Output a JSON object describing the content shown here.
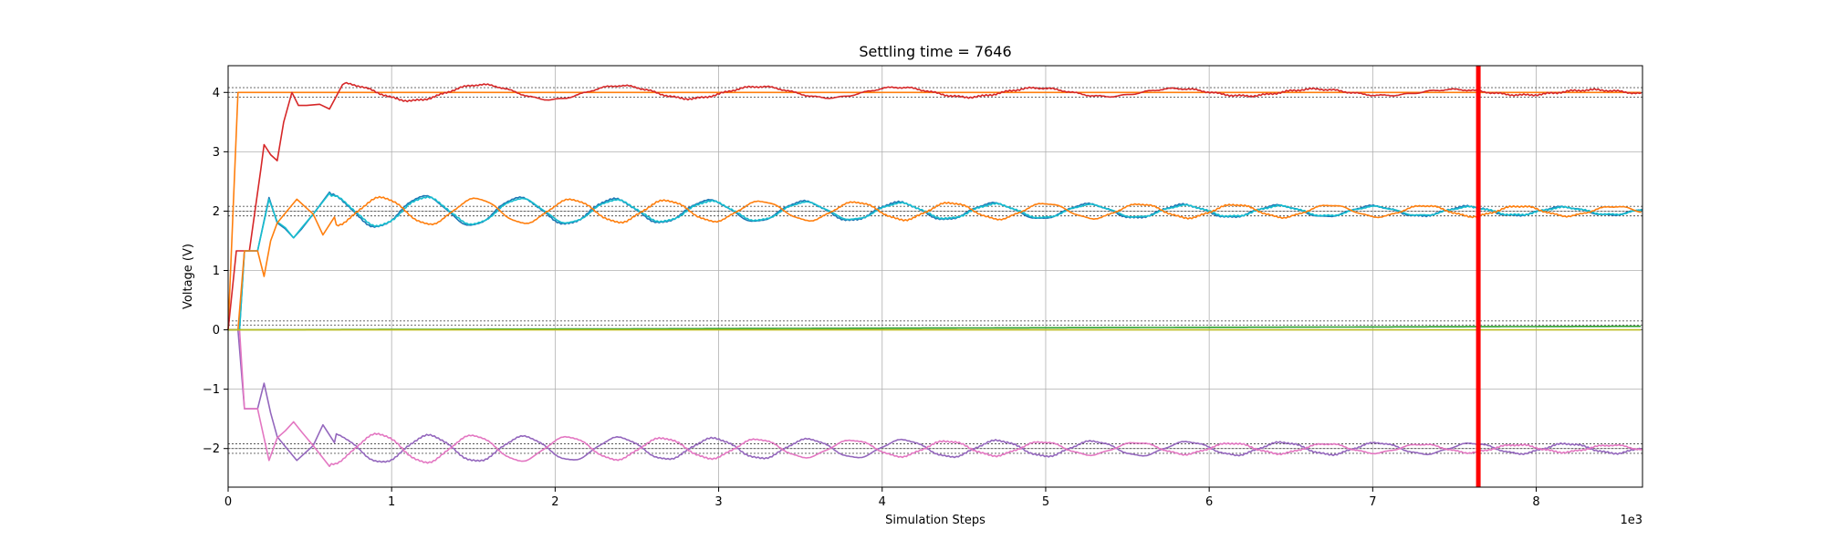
{
  "chart_data": {
    "type": "line",
    "title": "Settling time = 7646",
    "xlabel": "Simulation Steps",
    "ylabel": "Voltage (V)",
    "x_offset_label": "1e3",
    "xlim": [
      0,
      8650
    ],
    "ylim": [
      -2.65,
      4.45
    ],
    "x_ticks": [
      0,
      1000,
      2000,
      3000,
      4000,
      5000,
      6000,
      7000,
      8000
    ],
    "x_tick_labels": [
      "0",
      "1",
      "2",
      "3",
      "4",
      "5",
      "6",
      "7",
      "8"
    ],
    "y_ticks": [
      -2,
      -1,
      0,
      1,
      2,
      3,
      4
    ],
    "y_tick_labels": [
      "−2",
      "−1",
      "0",
      "1",
      "2",
      "3",
      "4"
    ],
    "grid": true,
    "settling_marker": {
      "x": 7646,
      "color": "#ff0000"
    },
    "tolerance_bands": [
      3.92,
      4.0,
      4.08,
      1.92,
      2.0,
      2.08,
      0.0,
      0.08,
      0.15,
      -1.92,
      -2.0,
      -2.08
    ],
    "series": [
      {
        "color": "#ff7f0e",
        "start": [
          [
            0,
            0
          ],
          [
            60,
            4.0
          ]
        ],
        "level": 4.0,
        "amp": 0.0,
        "period": 600,
        "tau": 3000,
        "sign": 1,
        "phase": 0,
        "jitter": 0.0
      },
      {
        "color": "#d62728",
        "start": [
          [
            0,
            0
          ],
          [
            50,
            1.33
          ],
          [
            130,
            1.33
          ],
          [
            200,
            2.7
          ],
          [
            220,
            3.12
          ],
          [
            260,
            2.95
          ],
          [
            300,
            2.85
          ],
          [
            340,
            3.5
          ],
          [
            390,
            4.0
          ],
          [
            430,
            3.78
          ],
          [
            480,
            3.78
          ],
          [
            560,
            3.8
          ],
          [
            620,
            3.72
          ],
          [
            700,
            4.13
          ]
        ],
        "level": 4.0,
        "amp": 0.15,
        "period": 850,
        "tau": 6000,
        "sign": 1,
        "phase": 700,
        "jitter": 0.02
      },
      {
        "color": "#1f77b4",
        "start": [
          [
            0,
            0
          ],
          [
            70,
            0
          ],
          [
            100,
            1.33
          ],
          [
            180,
            1.33
          ],
          [
            250,
            2.23
          ],
          [
            300,
            1.8
          ],
          [
            350,
            1.7
          ],
          [
            400,
            1.55
          ],
          [
            450,
            1.7
          ],
          [
            520,
            1.95
          ],
          [
            620,
            2.32
          ]
        ],
        "level": 2.0,
        "amp": 0.28,
        "period": 580,
        "tau": 5500,
        "sign": 1,
        "phase": 620,
        "jitter": 0.02
      },
      {
        "color": "#17becf",
        "start": [
          [
            0,
            0
          ],
          [
            70,
            0
          ],
          [
            100,
            1.33
          ],
          [
            180,
            1.33
          ],
          [
            250,
            2.2
          ],
          [
            300,
            1.82
          ],
          [
            350,
            1.72
          ],
          [
            400,
            1.55
          ],
          [
            450,
            1.72
          ],
          [
            520,
            1.95
          ],
          [
            620,
            2.3
          ]
        ],
        "level": 2.0,
        "amp": 0.26,
        "period": 580,
        "tau": 5200,
        "sign": 1,
        "phase": 630,
        "jitter": 0.02
      },
      {
        "color": "#ff7f0e",
        "start": [
          [
            0,
            0
          ],
          [
            60,
            0
          ],
          [
            100,
            1.33
          ],
          [
            180,
            1.33
          ],
          [
            220,
            0.9
          ],
          [
            260,
            1.5
          ],
          [
            300,
            1.8
          ],
          [
            360,
            2.0
          ],
          [
            420,
            2.2
          ],
          [
            520,
            1.95
          ],
          [
            580,
            1.6
          ],
          [
            650,
            1.9
          ]
        ],
        "level": 2.0,
        "amp": 0.24,
        "period": 580,
        "tau": 7000,
        "sign": -1,
        "phase": 650,
        "jitter": 0.02
      },
      {
        "color": "#9467bd",
        "start": [
          [
            0,
            0
          ],
          [
            60,
            0
          ],
          [
            100,
            -1.33
          ],
          [
            180,
            -1.33
          ],
          [
            220,
            -0.9
          ],
          [
            260,
            -1.4
          ],
          [
            300,
            -1.8
          ],
          [
            360,
            -2.0
          ],
          [
            420,
            -2.2
          ],
          [
            520,
            -1.95
          ],
          [
            580,
            -1.6
          ],
          [
            650,
            -1.9
          ]
        ],
        "level": -2.0,
        "amp": 0.24,
        "period": 580,
        "tau": 7000,
        "sign": 1,
        "phase": 650,
        "jitter": 0.02
      },
      {
        "color": "#e377c2",
        "start": [
          [
            0,
            0
          ],
          [
            70,
            0
          ],
          [
            100,
            -1.33
          ],
          [
            180,
            -1.33
          ],
          [
            250,
            -2.2
          ],
          [
            300,
            -1.82
          ],
          [
            350,
            -1.7
          ],
          [
            400,
            -1.55
          ],
          [
            450,
            -1.72
          ],
          [
            520,
            -1.95
          ],
          [
            620,
            -2.3
          ]
        ],
        "level": -2.0,
        "amp": 0.26,
        "period": 580,
        "tau": 5200,
        "sign": -1,
        "phase": 630,
        "jitter": 0.02
      },
      {
        "color": "#2ca02c",
        "start": [
          [
            0,
            0
          ]
        ],
        "level": 0.06,
        "amp": 0.0,
        "period": 600,
        "tau": 3000,
        "sign": 1,
        "phase": 0,
        "jitter": 0.0,
        "ramp": true
      },
      {
        "color": "#bcbd22",
        "start": [
          [
            0,
            0
          ]
        ],
        "level": 0.0,
        "amp": 0.0,
        "period": 600,
        "tau": 3000,
        "sign": 1,
        "phase": 0,
        "jitter": 0.0
      }
    ]
  }
}
